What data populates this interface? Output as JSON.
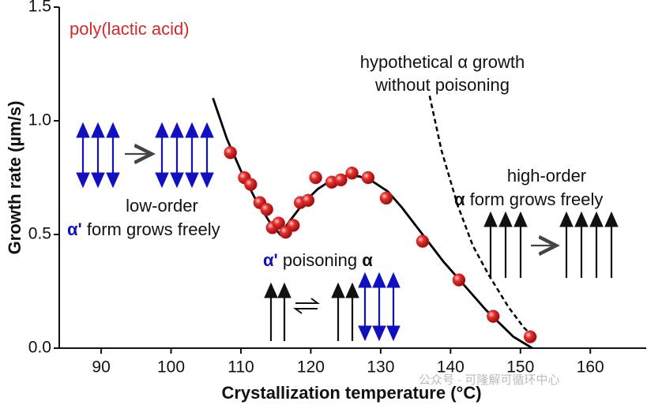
{
  "chart_data": {
    "type": "scatter",
    "x_label": "Crystallization temperature (°C)",
    "y_label": "Growth rate (µm/s)",
    "xlim": [
      84,
      168
    ],
    "ylim": [
      0,
      1.5
    ],
    "xticks": [
      90,
      100,
      110,
      120,
      130,
      140,
      150,
      160
    ],
    "yticks": [
      {
        "value": 0,
        "label": "0.0"
      },
      0.5,
      {
        "value": 1,
        "label": "1.0"
      },
      {
        "value": 1.5,
        "label": "1.5"
      }
    ],
    "series": [
      {
        "style": "points",
        "color": "#e02020",
        "x": [
          108.5,
          110.5,
          111.4,
          112.7,
          113.7,
          114.5,
          115.4,
          116.4,
          117.5,
          118.5,
          119.6,
          120.7,
          123.0,
          124.3,
          125.9,
          128.2,
          130.8,
          136.0,
          141.2,
          146.1,
          151.4
        ],
        "values": [
          0.86,
          0.75,
          0.72,
          0.64,
          0.61,
          0.53,
          0.55,
          0.51,
          0.54,
          0.64,
          0.65,
          0.75,
          0.73,
          0.74,
          0.77,
          0.75,
          0.66,
          0.47,
          0.3,
          0.14,
          0.05
        ]
      },
      {
        "style": "solid",
        "color": "#000000",
        "x": [
          106,
          108,
          110,
          112,
          114,
          115.6,
          117,
          119,
          121,
          123,
          125.2,
          127,
          129,
          131,
          133,
          135,
          137,
          139,
          141,
          143,
          145,
          147,
          149,
          151.7
        ],
        "values": [
          1.1,
          0.92,
          0.78,
          0.66,
          0.56,
          0.5,
          0.56,
          0.64,
          0.7,
          0.74,
          0.76,
          0.755,
          0.73,
          0.69,
          0.62,
          0.54,
          0.46,
          0.38,
          0.31,
          0.24,
          0.17,
          0.11,
          0.05,
          0.0
        ]
      },
      {
        "style": "dashed",
        "color": "#000000",
        "x": [
          137.0,
          138.7,
          141.0,
          143.2,
          145.5,
          148.3,
          150.5,
          152.2
        ],
        "values": [
          1.11,
          0.87,
          0.63,
          0.45,
          0.32,
          0.18,
          0.09,
          0.04
        ]
      }
    ],
    "annotations": [
      {
        "text": "poly(lactic acid)"
      },
      {
        "text": "hypothetical α growth"
      },
      {
        "text": "without poisoning"
      },
      {
        "text": "low-order"
      },
      {
        "parts": [
          "α'",
          " form grows freely"
        ]
      },
      {
        "parts": [
          "α'",
          " poisoning ",
          "α"
        ]
      },
      {
        "text": "high-order"
      },
      {
        "parts": [
          "α",
          " form grows freely"
        ]
      }
    ],
    "watermark": "公众号 · 可隆解可循环中心"
  }
}
